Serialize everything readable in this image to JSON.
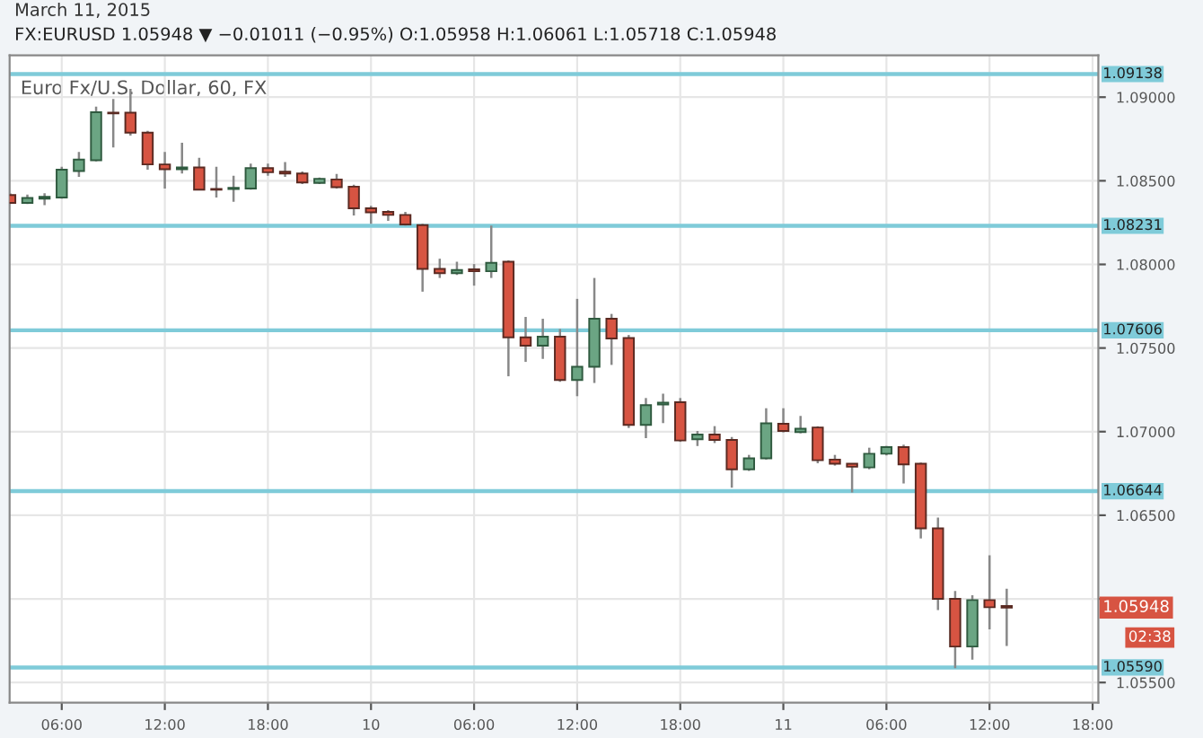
{
  "chart_data": {
    "type": "candlestick",
    "title": "Euro Fx/U.S. Dollar, 60, FX",
    "subtitle": "FX:EURUSD 1.05948 ▼ −0.01011 (−0.95%) O:1.05958 H:1.06061 L:1.05718 C:1.05948",
    "annotations": [
      "March 11, 2015",
      {
        "text": "1.05948",
        "y": 1.05948
      },
      "02:38"
    ],
    "x": [
      "2015-03-09T03:00",
      "2015-03-09T04:00",
      "2015-03-09T05:00",
      "2015-03-09T06:00",
      "2015-03-09T07:00",
      "2015-03-09T08:00",
      "2015-03-09T09:00",
      "2015-03-09T10:00",
      "2015-03-09T11:00",
      "2015-03-09T12:00",
      "2015-03-09T13:00",
      "2015-03-09T14:00",
      "2015-03-09T15:00",
      "2015-03-09T16:00",
      "2015-03-09T17:00",
      "2015-03-09T18:00",
      "2015-03-09T19:00",
      "2015-03-09T20:00",
      "2015-03-09T21:00",
      "2015-03-09T22:00",
      "2015-03-09T23:00",
      "2015-03-10T00:00",
      "2015-03-10T01:00",
      "2015-03-10T02:00",
      "2015-03-10T03:00",
      "2015-03-10T04:00",
      "2015-03-10T05:00",
      "2015-03-10T06:00",
      "2015-03-10T07:00",
      "2015-03-10T08:00",
      "2015-03-10T09:00",
      "2015-03-10T10:00",
      "2015-03-10T11:00",
      "2015-03-10T12:00",
      "2015-03-10T13:00",
      "2015-03-10T14:00",
      "2015-03-10T15:00",
      "2015-03-10T16:00",
      "2015-03-10T17:00",
      "2015-03-10T18:00",
      "2015-03-10T19:00",
      "2015-03-10T20:00",
      "2015-03-10T21:00",
      "2015-03-10T22:00",
      "2015-03-10T23:00",
      "2015-03-11T00:00",
      "2015-03-11T01:00",
      "2015-03-11T02:00",
      "2015-03-11T03:00",
      "2015-03-11T04:00",
      "2015-03-11T05:00",
      "2015-03-11T06:00",
      "2015-03-11T07:00",
      "2015-03-11T08:00",
      "2015-03-11T09:00",
      "2015-03-11T10:00",
      "2015-03-11T11:00",
      "2015-03-11T12:00",
      "2015-03-11T13:00"
    ],
    "ohlc": [
      [
        1.08415,
        1.08426,
        1.08361,
        1.08368
      ],
      [
        1.08368,
        1.08418,
        1.08361,
        1.08397
      ],
      [
        1.08393,
        1.08426,
        1.08354,
        1.08404
      ],
      [
        1.084,
        1.08584,
        1.08393,
        1.08566
      ],
      [
        1.08558,
        1.08673,
        1.08523,
        1.08627
      ],
      [
        1.08623,
        1.08943,
        1.08616,
        1.0891
      ],
      [
        1.08907,
        1.08989,
        1.08699,
        1.08903
      ],
      [
        1.08907,
        1.0905,
        1.0877,
        1.08788
      ],
      [
        1.08788,
        1.08799,
        1.08566,
        1.08598
      ],
      [
        1.08598,
        1.08673,
        1.08454,
        1.08569
      ],
      [
        1.08569,
        1.08727,
        1.08544,
        1.0858
      ],
      [
        1.0858,
        1.08637,
        1.08444,
        1.08447
      ],
      [
        1.08451,
        1.08584,
        1.084,
        1.08447
      ],
      [
        1.08451,
        1.0853,
        1.08375,
        1.08458
      ],
      [
        1.08454,
        1.08602,
        1.08447,
        1.08576
      ],
      [
        1.08576,
        1.08602,
        1.0853,
        1.08551
      ],
      [
        1.08555,
        1.08612,
        1.08523,
        1.08544
      ],
      [
        1.08544,
        1.08555,
        1.0848,
        1.0849
      ],
      [
        1.08487,
        1.08519,
        1.0848,
        1.08512
      ],
      [
        1.08508,
        1.08541,
        1.08454,
        1.08462
      ],
      [
        1.08465,
        1.08476,
        1.08293,
        1.08336
      ],
      [
        1.08336,
        1.0835,
        1.08243,
        1.08311
      ],
      [
        1.08314,
        1.08325,
        1.08261,
        1.08296
      ],
      [
        1.08296,
        1.08314,
        1.08232,
        1.08239
      ],
      [
        1.08235,
        1.08243,
        1.07837,
        1.07973
      ],
      [
        1.07973,
        1.08034,
        1.07919,
        1.07948
      ],
      [
        1.07948,
        1.08016,
        1.07937,
        1.07966
      ],
      [
        1.0797,
        1.08002,
        1.07873,
        1.07959
      ],
      [
        1.07959,
        1.08232,
        1.07919,
        1.08009
      ],
      [
        1.08016,
        1.08024,
        1.07331,
        1.07564
      ],
      [
        1.07564,
        1.07686,
        1.07417,
        1.07514
      ],
      [
        1.07514,
        1.07675,
        1.07435,
        1.07568
      ],
      [
        1.07568,
        1.07614,
        1.07298,
        1.07309
      ],
      [
        1.07309,
        1.07794,
        1.07212,
        1.07388
      ],
      [
        1.07388,
        1.07919,
        1.07291,
        1.07675
      ],
      [
        1.07675,
        1.07704,
        1.07399,
        1.07557
      ],
      [
        1.0756,
        1.07578,
        1.07022,
        1.0704
      ],
      [
        1.0704,
        1.07201,
        1.06961,
        1.07158
      ],
      [
        1.07162,
        1.07227,
        1.07051,
        1.07173
      ],
      [
        1.07176,
        1.07201,
        1.06939,
        1.06947
      ],
      [
        1.06954,
        1.07004,
        1.06914,
        1.06983
      ],
      [
        1.06983,
        1.07033,
        1.06932,
        1.0695
      ],
      [
        1.0695,
        1.06968,
        1.06665,
        1.06775
      ],
      [
        1.06775,
        1.06861,
        1.06765,
        1.0684
      ],
      [
        1.0684,
        1.0714,
        1.06833,
        1.0705
      ],
      [
        1.07047,
        1.0714,
        1.06995,
        1.07004
      ],
      [
        1.06997,
        1.07094,
        1.0699,
        1.07018
      ],
      [
        1.07025,
        1.07032,
        1.06811,
        1.06829
      ],
      [
        1.06833,
        1.06861,
        1.06797,
        1.06808
      ],
      [
        1.06808,
        1.06811,
        1.06636,
        1.0679
      ],
      [
        1.06786,
        1.06904,
        1.06775,
        1.06868
      ],
      [
        1.06868,
        1.06915,
        1.06858,
        1.06908
      ],
      [
        1.06908,
        1.06922,
        1.0669,
        1.06804
      ],
      [
        1.06808,
        1.06815,
        1.06361,
        1.06422
      ],
      [
        1.06422,
        1.06486,
        1.05933,
        1.06
      ],
      [
        1.06,
        1.06047,
        1.05586,
        1.05715
      ],
      [
        1.05715,
        1.06022,
        1.05636,
        1.05993
      ],
      [
        1.05993,
        1.06261,
        1.05818,
        1.0595
      ],
      [
        1.05958,
        1.06061,
        1.05718,
        1.05948
      ]
    ],
    "colors": [
      "#d75442",
      "#6ba583",
      "#6ba583",
      "#6ba583",
      "#6ba583",
      "#6ba583",
      "#d75442",
      "#d75442",
      "#d75442",
      "#d75442",
      "#6ba583",
      "#d75442",
      "#d75442",
      "#6ba583",
      "#6ba583",
      "#d75442",
      "#d75442",
      "#d75442",
      "#6ba583",
      "#d75442",
      "#d75442",
      "#d75442",
      "#d75442",
      "#d75442",
      "#d75442",
      "#d75442",
      "#6ba583",
      "#d75442",
      "#6ba583",
      "#d75442",
      "#d75442",
      "#6ba583",
      "#d75442",
      "#6ba583",
      "#6ba583",
      "#d75442",
      "#d75442",
      "#6ba583",
      "#6ba583",
      "#d75442",
      "#6ba583",
      "#d75442",
      "#d75442",
      "#6ba583",
      "#6ba583",
      "#d75442",
      "#6ba583",
      "#d75442",
      "#d75442",
      "#d75442",
      "#6ba583",
      "#6ba583",
      "#d75442",
      "#d75442",
      "#d75442",
      "#d75442",
      "#6ba583",
      "#d75442",
      "#d75442"
    ],
    "xlim": [
      "2015-03-09T02:58",
      "2015-03-11T18:20"
    ],
    "xticks": [
      {
        "value": "2015-03-09T06:00",
        "label": "06:00"
      },
      {
        "value": "2015-03-09T12:00",
        "label": "12:00"
      },
      {
        "value": "2015-03-09T18:00",
        "label": "18:00"
      },
      {
        "value": "2015-03-10T00:00",
        "label": "10"
      },
      {
        "value": "2015-03-10T06:00",
        "label": "06:00"
      },
      {
        "value": "2015-03-10T12:00",
        "label": "12:00"
      },
      {
        "value": "2015-03-10T18:00",
        "label": "18:00"
      },
      {
        "value": "2015-03-11T00:00",
        "label": "11"
      },
      {
        "value": "2015-03-11T06:00",
        "label": "06:00"
      },
      {
        "value": "2015-03-11T12:00",
        "label": "12:00"
      },
      {
        "value": "2015-03-11T18:00",
        "label": "18:00"
      }
    ],
    "ylim": [
      1.0538,
      1.0925
    ],
    "yticks": [
      {
        "value": 1.055,
        "label": "1.05500"
      },
      {
        "value": 1.06,
        "label": null
      },
      {
        "value": 1.065,
        "label": "1.06500"
      },
      {
        "value": 1.07,
        "label": "1.07000"
      },
      {
        "value": 1.075,
        "label": "1.07500"
      },
      {
        "value": 1.08,
        "label": "1.08000"
      },
      {
        "value": 1.085,
        "label": "1.08500"
      },
      {
        "value": 1.09,
        "label": "1.09000"
      }
    ],
    "ref_lines": [
      {
        "axis": "y",
        "value": 1.09138,
        "label": "1.09138",
        "color": "#7fcbd9"
      },
      {
        "axis": "y",
        "value": 1.08231,
        "label": "1.08231",
        "color": "#7fcbd9"
      },
      {
        "axis": "y",
        "value": 1.07606,
        "label": "1.07606",
        "color": "#7fcbd9"
      },
      {
        "axis": "y",
        "value": 1.06644,
        "label": "1.06644",
        "color": "#7fcbd9"
      },
      {
        "axis": "y",
        "value": 1.0559,
        "label": "1.05590",
        "color": "#7fcbd9"
      }
    ],
    "grid": true
  }
}
